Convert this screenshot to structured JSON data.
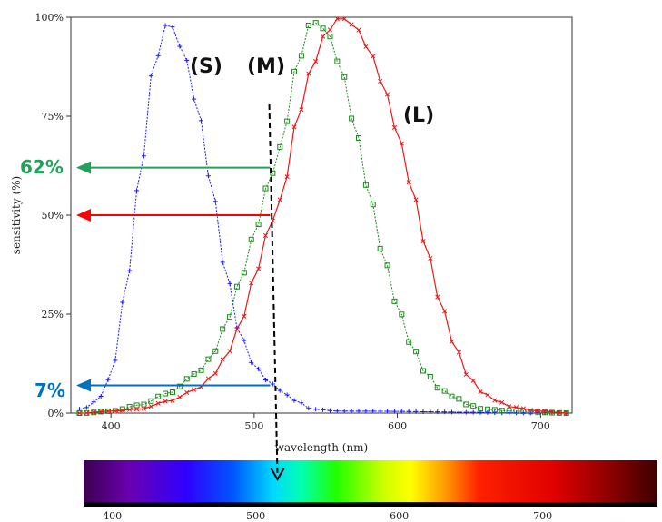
{
  "chart_data": {
    "type": "line",
    "title": "",
    "xlabel": "wavelength (nm)",
    "ylabel": "sensitivity (%)",
    "xlim": [
      372,
      722
    ],
    "ylim": [
      0,
      100
    ],
    "x_ticks": [
      "400",
      "500",
      "600",
      "700"
    ],
    "y_ticks": [
      "0%",
      "25%",
      "50%",
      "75%",
      "100%"
    ],
    "series": [
      {
        "name": "(S)",
        "color": "#1a1aff",
        "marker": "+",
        "points": [
          [
            380,
            1
          ],
          [
            390,
            3
          ],
          [
            400,
            9
          ],
          [
            410,
            30
          ],
          [
            420,
            59
          ],
          [
            430,
            88
          ],
          [
            440,
            99
          ],
          [
            450,
            92
          ],
          [
            460,
            78
          ],
          [
            470,
            58
          ],
          [
            480,
            36
          ],
          [
            490,
            20
          ],
          [
            500,
            12
          ],
          [
            510,
            8
          ],
          [
            515,
            7
          ],
          [
            520,
            5
          ],
          [
            530,
            3
          ],
          [
            540,
            1
          ],
          [
            560,
            0.5
          ],
          [
            720,
            0
          ]
        ]
      },
      {
        "name": "(M)",
        "color": "#1a8a1a",
        "marker": "square",
        "points": [
          [
            380,
            0
          ],
          [
            400,
            0.5
          ],
          [
            420,
            2
          ],
          [
            440,
            5
          ],
          [
            460,
            10
          ],
          [
            470,
            14
          ],
          [
            480,
            22
          ],
          [
            490,
            33
          ],
          [
            500,
            45
          ],
          [
            510,
            58
          ],
          [
            515,
            62
          ],
          [
            520,
            70
          ],
          [
            530,
            88
          ],
          [
            540,
            99
          ],
          [
            550,
            97
          ],
          [
            560,
            88
          ],
          [
            570,
            73
          ],
          [
            580,
            56
          ],
          [
            590,
            40
          ],
          [
            600,
            27
          ],
          [
            610,
            17
          ],
          [
            620,
            10
          ],
          [
            630,
            6
          ],
          [
            640,
            4
          ],
          [
            650,
            2
          ],
          [
            660,
            1
          ],
          [
            680,
            0.5
          ],
          [
            720,
            0
          ]
        ]
      },
      {
        "name": "(L)",
        "color": "#e61a1a",
        "marker": "x",
        "points": [
          [
            380,
            0
          ],
          [
            400,
            0.5
          ],
          [
            420,
            1
          ],
          [
            440,
            3
          ],
          [
            460,
            6
          ],
          [
            470,
            9
          ],
          [
            480,
            14
          ],
          [
            490,
            22
          ],
          [
            500,
            34
          ],
          [
            510,
            46
          ],
          [
            515,
            50
          ],
          [
            520,
            56
          ],
          [
            530,
            74
          ],
          [
            540,
            87
          ],
          [
            550,
            96
          ],
          [
            560,
            100
          ],
          [
            570,
            98
          ],
          [
            580,
            92
          ],
          [
            590,
            83
          ],
          [
            600,
            71
          ],
          [
            610,
            57
          ],
          [
            620,
            42
          ],
          [
            630,
            28
          ],
          [
            640,
            17
          ],
          [
            650,
            9
          ],
          [
            660,
            5
          ],
          [
            670,
            3
          ],
          [
            680,
            1.5
          ],
          [
            700,
            0.5
          ],
          [
            720,
            0
          ]
        ]
      }
    ],
    "annotations": [
      {
        "text": "(S)"
      },
      {
        "text": "(M)"
      },
      {
        "text": "(L)"
      },
      {
        "text": "62%",
        "color": "#22a15a",
        "value": 62
      },
      {
        "text": "50%",
        "color": "#ff0000",
        "value": 50
      },
      {
        "text": "7%",
        "color": "#0070c0",
        "value": 7
      }
    ],
    "marker_wavelength": 515,
    "spectrum_ticks": [
      "400",
      "500",
      "600",
      "700"
    ]
  }
}
